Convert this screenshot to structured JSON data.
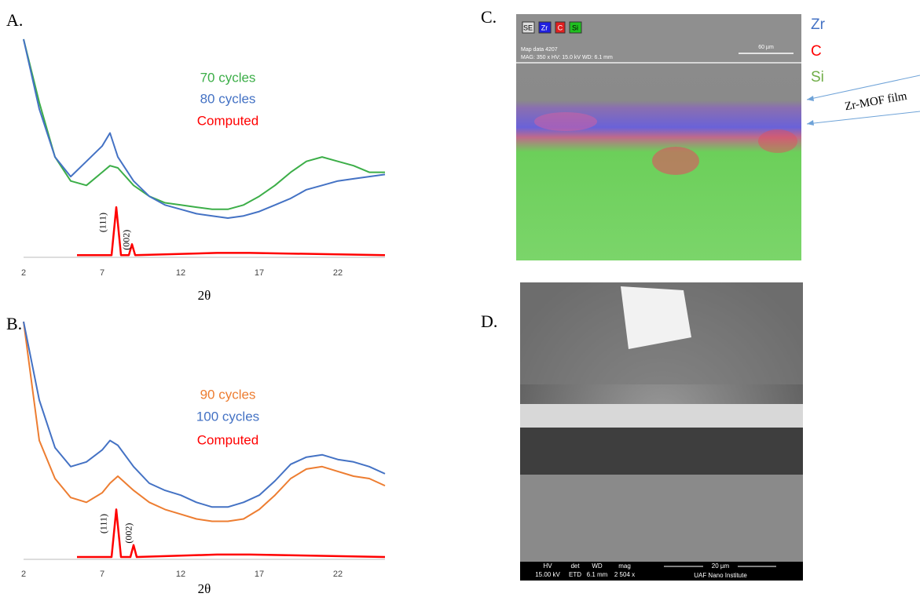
{
  "chart_data": [
    {
      "type": "line",
      "panel_label": "A.",
      "x_label": "2θ",
      "xlim": [
        2,
        25
      ],
      "ylim": [
        0,
        100
      ],
      "xticks": [
        2,
        7,
        12,
        17,
        22
      ],
      "x": [
        2,
        3,
        4,
        5,
        6,
        7,
        7.5,
        8,
        9,
        10,
        11,
        12,
        13,
        14,
        15,
        16,
        17,
        18,
        19,
        20,
        21,
        22,
        23,
        24,
        25
      ],
      "series": [
        {
          "name": "70 cycles",
          "color": "#3cae48",
          "values": [
            100,
            71,
            46,
            35,
            33,
            39,
            42,
            41,
            33,
            28,
            25,
            24,
            23,
            22,
            22,
            24,
            28,
            33,
            39,
            44,
            46,
            44,
            42,
            39,
            39
          ]
        },
        {
          "name": "80 cycles",
          "color": "#4472c4",
          "values": [
            100,
            68,
            46,
            37,
            44,
            51,
            57,
            46,
            35,
            28,
            24,
            22,
            20,
            19,
            18,
            19,
            21,
            24,
            27,
            31,
            33,
            35,
            36,
            37,
            38
          ]
        },
        {
          "name": "Computed",
          "color": "#ff0000",
          "x": [
            5.4,
            7.6,
            7.9,
            8.2,
            8.7,
            8.9,
            9.1,
            14.3,
            16.4,
            25
          ],
          "values": [
            1,
            1,
            23,
            1,
            1,
            6,
            1,
            2,
            2,
            1
          ]
        }
      ],
      "annotations": [
        {
          "text": "(111)",
          "x": 7.1,
          "y": 16
        },
        {
          "text": "(002)",
          "x": 8.6,
          "y": 8
        }
      ]
    },
    {
      "type": "line",
      "panel_label": "B.",
      "x_label": "2θ",
      "xlim": [
        2,
        25
      ],
      "ylim": [
        0,
        100
      ],
      "xticks": [
        2,
        7,
        12,
        17,
        22
      ],
      "x": [
        2,
        3,
        4,
        5,
        6,
        7,
        7.5,
        8,
        9,
        10,
        11,
        12,
        13,
        14,
        15,
        16,
        17,
        18,
        19,
        20,
        21,
        22,
        23,
        24,
        25
      ],
      "series": [
        {
          "name": "90 cycles",
          "color": "#ed7d31",
          "values": [
            100,
            50,
            34,
            26,
            24,
            28,
            32,
            35,
            29,
            24,
            21,
            19,
            17,
            16,
            16,
            17,
            21,
            27,
            34,
            38,
            39,
            37,
            35,
            34,
            31
          ]
        },
        {
          "name": "100 cycles",
          "color": "#4472c4",
          "values": [
            100,
            67,
            47,
            39,
            41,
            46,
            50,
            48,
            39,
            32,
            29,
            27,
            24,
            22,
            22,
            24,
            27,
            33,
            40,
            43,
            44,
            42,
            41,
            39,
            36
          ]
        },
        {
          "name": "Computed",
          "color": "#ff0000",
          "x": [
            5.4,
            7.6,
            7.9,
            8.2,
            8.8,
            9.0,
            9.2,
            14.3,
            16.4,
            25
          ],
          "values": [
            1,
            1,
            21,
            1,
            1,
            6,
            1,
            2,
            2,
            1
          ]
        }
      ],
      "annotations": [
        {
          "text": "(111)",
          "x": 7.15,
          "y": 15
        },
        {
          "text": "(002)",
          "x": 8.75,
          "y": 11
        }
      ]
    }
  ],
  "panel_c": {
    "label": "C.",
    "toolbar": [
      "SE",
      "Zr",
      "C",
      "Si"
    ],
    "map_info": "Map data 4207",
    "acquisition": "MAG: 350 x   HV: 15.0 kV   WD: 6.1 mm",
    "scale_bar": "60 µm",
    "legend": [
      "Zr",
      "C",
      "Si"
    ],
    "annotation": "Zr-MOF film"
  },
  "panel_d": {
    "label": "D.",
    "info_headers": [
      "HV",
      "det",
      "WD",
      "mag"
    ],
    "info_values": [
      "15.00 kV",
      "ETD",
      "6.1 mm",
      "2 504 x"
    ],
    "scale_bar": "20 µm",
    "institute": "UAF Nano Institute"
  }
}
